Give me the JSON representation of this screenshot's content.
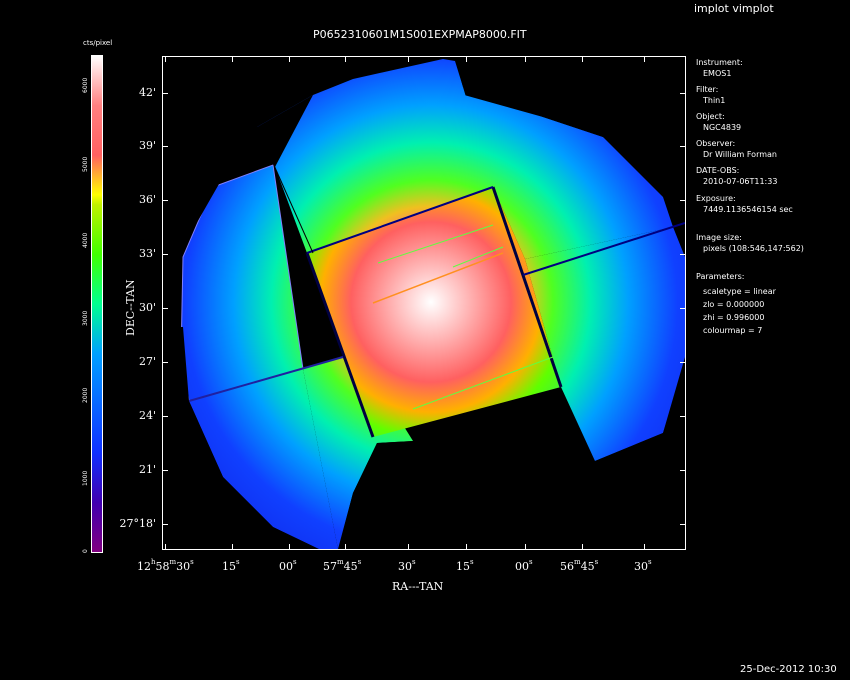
{
  "window": {
    "menu": "implot vimplot",
    "timestamp": "25-Dec-2012 10:30"
  },
  "plot": {
    "title": "P0652310601M1S001EXPMAP8000.FIT",
    "xlabel": "RA---TAN",
    "ylabel": "DEC--TAN",
    "x_ticks": [
      {
        "h": "12",
        "hs": "h",
        "m": "58",
        "ms": "m",
        "s": "30",
        "ss": "s"
      },
      {
        "s": "15",
        "ss": "s"
      },
      {
        "s": "00",
        "ss": "s"
      },
      {
        "m": "57",
        "ms": "m",
        "s": "45",
        "ss": "s"
      },
      {
        "s": "30",
        "ss": "s"
      },
      {
        "s": "15",
        "ss": "s"
      },
      {
        "s": "00",
        "ss": "s"
      },
      {
        "m": "56",
        "ms": "m",
        "s": "45",
        "ss": "s"
      },
      {
        "s": "30",
        "ss": "s"
      }
    ],
    "y_ticks": [
      "42'",
      "39'",
      "36'",
      "33'",
      "30'",
      "27'",
      "24'",
      "21'",
      "27°18'"
    ]
  },
  "colorbar": {
    "label": "cts/pixel",
    "ticks": [
      "0",
      "1000",
      "2000",
      "3000",
      "4000",
      "5000",
      "6000"
    ]
  },
  "info": {
    "instrument_label": "Instrument:",
    "instrument": "EMOS1",
    "filter_label": "Filter:",
    "filter": "Thin1",
    "object_label": "Object:",
    "object": "NGC4839",
    "observer_label": "Observer:",
    "observer": "Dr William Forman",
    "date_label": "DATE-OBS:",
    "date": "2010-07-06T11:33",
    "exposure_label": "Exposure:",
    "exposure": "7449.1136546154 sec",
    "imgsize_label": "Image size:",
    "imgsize": "pixels (108:546,147:562)",
    "params_label": "Parameters:",
    "scaletype": "scaletype = linear",
    "zlo": "zlo = 0.000000",
    "zhi": "zhi = 0.996000",
    "colourmap": "colourmap =   7"
  },
  "colors": {
    "background": "#000000",
    "foreground": "#ffffff"
  }
}
